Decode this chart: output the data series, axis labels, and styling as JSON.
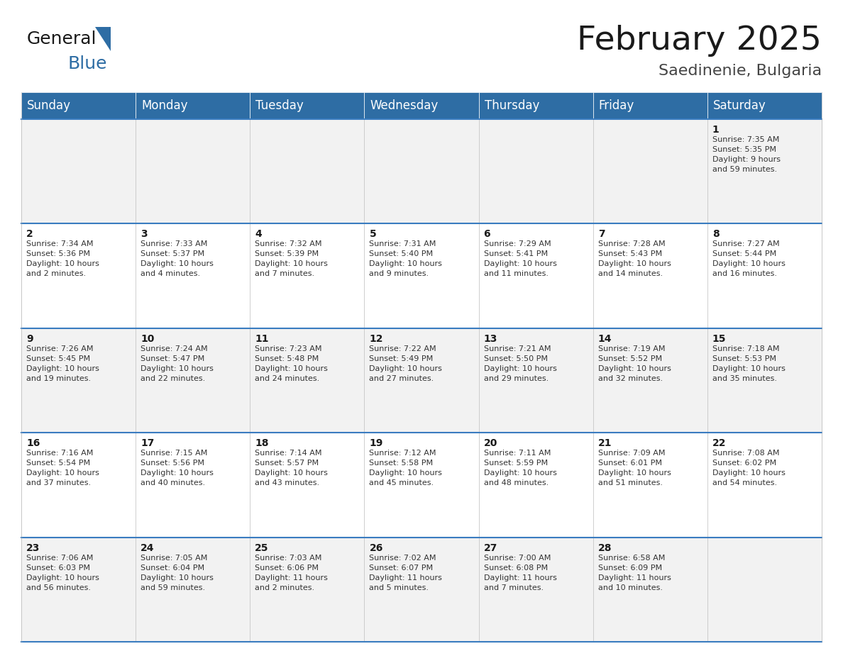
{
  "title": "February 2025",
  "subtitle": "Saedinenie, Bulgaria",
  "header_bg_color": "#2E6DA4",
  "header_text_color": "#FFFFFF",
  "cell_bg_colors": [
    "#F2F2F2",
    "#FFFFFF"
  ],
  "border_color": "#3A7CC0",
  "inner_border_color": "#CCCCCC",
  "day_headers": [
    "Sunday",
    "Monday",
    "Tuesday",
    "Wednesday",
    "Thursday",
    "Friday",
    "Saturday"
  ],
  "title_fontsize": 34,
  "subtitle_fontsize": 16,
  "header_fontsize": 12,
  "day_num_fontsize": 10,
  "info_fontsize": 8,
  "weeks": [
    [
      {
        "day": null,
        "info": ""
      },
      {
        "day": null,
        "info": ""
      },
      {
        "day": null,
        "info": ""
      },
      {
        "day": null,
        "info": ""
      },
      {
        "day": null,
        "info": ""
      },
      {
        "day": null,
        "info": ""
      },
      {
        "day": 1,
        "info": "Sunrise: 7:35 AM\nSunset: 5:35 PM\nDaylight: 9 hours\nand 59 minutes."
      }
    ],
    [
      {
        "day": 2,
        "info": "Sunrise: 7:34 AM\nSunset: 5:36 PM\nDaylight: 10 hours\nand 2 minutes."
      },
      {
        "day": 3,
        "info": "Sunrise: 7:33 AM\nSunset: 5:37 PM\nDaylight: 10 hours\nand 4 minutes."
      },
      {
        "day": 4,
        "info": "Sunrise: 7:32 AM\nSunset: 5:39 PM\nDaylight: 10 hours\nand 7 minutes."
      },
      {
        "day": 5,
        "info": "Sunrise: 7:31 AM\nSunset: 5:40 PM\nDaylight: 10 hours\nand 9 minutes."
      },
      {
        "day": 6,
        "info": "Sunrise: 7:29 AM\nSunset: 5:41 PM\nDaylight: 10 hours\nand 11 minutes."
      },
      {
        "day": 7,
        "info": "Sunrise: 7:28 AM\nSunset: 5:43 PM\nDaylight: 10 hours\nand 14 minutes."
      },
      {
        "day": 8,
        "info": "Sunrise: 7:27 AM\nSunset: 5:44 PM\nDaylight: 10 hours\nand 16 minutes."
      }
    ],
    [
      {
        "day": 9,
        "info": "Sunrise: 7:26 AM\nSunset: 5:45 PM\nDaylight: 10 hours\nand 19 minutes."
      },
      {
        "day": 10,
        "info": "Sunrise: 7:24 AM\nSunset: 5:47 PM\nDaylight: 10 hours\nand 22 minutes."
      },
      {
        "day": 11,
        "info": "Sunrise: 7:23 AM\nSunset: 5:48 PM\nDaylight: 10 hours\nand 24 minutes."
      },
      {
        "day": 12,
        "info": "Sunrise: 7:22 AM\nSunset: 5:49 PM\nDaylight: 10 hours\nand 27 minutes."
      },
      {
        "day": 13,
        "info": "Sunrise: 7:21 AM\nSunset: 5:50 PM\nDaylight: 10 hours\nand 29 minutes."
      },
      {
        "day": 14,
        "info": "Sunrise: 7:19 AM\nSunset: 5:52 PM\nDaylight: 10 hours\nand 32 minutes."
      },
      {
        "day": 15,
        "info": "Sunrise: 7:18 AM\nSunset: 5:53 PM\nDaylight: 10 hours\nand 35 minutes."
      }
    ],
    [
      {
        "day": 16,
        "info": "Sunrise: 7:16 AM\nSunset: 5:54 PM\nDaylight: 10 hours\nand 37 minutes."
      },
      {
        "day": 17,
        "info": "Sunrise: 7:15 AM\nSunset: 5:56 PM\nDaylight: 10 hours\nand 40 minutes."
      },
      {
        "day": 18,
        "info": "Sunrise: 7:14 AM\nSunset: 5:57 PM\nDaylight: 10 hours\nand 43 minutes."
      },
      {
        "day": 19,
        "info": "Sunrise: 7:12 AM\nSunset: 5:58 PM\nDaylight: 10 hours\nand 45 minutes."
      },
      {
        "day": 20,
        "info": "Sunrise: 7:11 AM\nSunset: 5:59 PM\nDaylight: 10 hours\nand 48 minutes."
      },
      {
        "day": 21,
        "info": "Sunrise: 7:09 AM\nSunset: 6:01 PM\nDaylight: 10 hours\nand 51 minutes."
      },
      {
        "day": 22,
        "info": "Sunrise: 7:08 AM\nSunset: 6:02 PM\nDaylight: 10 hours\nand 54 minutes."
      }
    ],
    [
      {
        "day": 23,
        "info": "Sunrise: 7:06 AM\nSunset: 6:03 PM\nDaylight: 10 hours\nand 56 minutes."
      },
      {
        "day": 24,
        "info": "Sunrise: 7:05 AM\nSunset: 6:04 PM\nDaylight: 10 hours\nand 59 minutes."
      },
      {
        "day": 25,
        "info": "Sunrise: 7:03 AM\nSunset: 6:06 PM\nDaylight: 11 hours\nand 2 minutes."
      },
      {
        "day": 26,
        "info": "Sunrise: 7:02 AM\nSunset: 6:07 PM\nDaylight: 11 hours\nand 5 minutes."
      },
      {
        "day": 27,
        "info": "Sunrise: 7:00 AM\nSunset: 6:08 PM\nDaylight: 11 hours\nand 7 minutes."
      },
      {
        "day": 28,
        "info": "Sunrise: 6:58 AM\nSunset: 6:09 PM\nDaylight: 11 hours\nand 10 minutes."
      },
      {
        "day": null,
        "info": ""
      }
    ]
  ]
}
